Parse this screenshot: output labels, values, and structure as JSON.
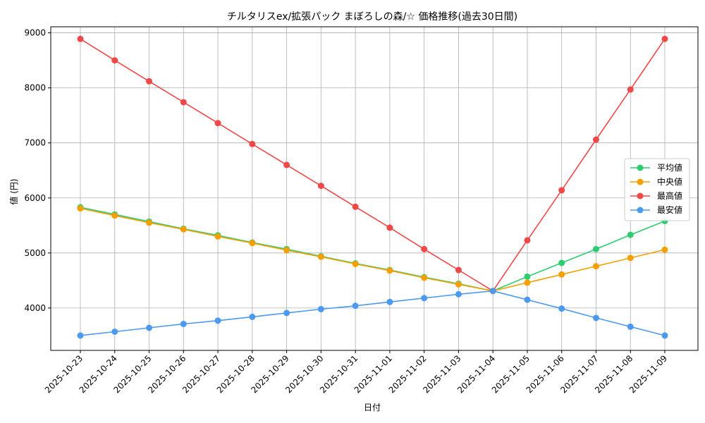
{
  "chart_data": {
    "type": "line",
    "title": "チルタリスex/拡張パック まぼろしの森/☆ 価格推移(過去30日間)",
    "xlabel": "日付",
    "ylabel": "値 (円)",
    "categories": [
      "2025-10-23",
      "2025-10-24",
      "2025-10-25",
      "2025-10-26",
      "2025-10-27",
      "2025-10-28",
      "2025-10-29",
      "2025-10-30",
      "2025-10-31",
      "2025-11-01",
      "2025-11-02",
      "2025-11-03",
      "2025-11-04",
      "2025-11-05",
      "2025-11-06",
      "2025-11-07",
      "2025-11-08",
      "2025-11-09"
    ],
    "ylim": [
      3230,
      9110
    ],
    "yticks": [
      4000,
      5000,
      6000,
      7000,
      8000,
      9000
    ],
    "grid": true,
    "legend_position": "center-right",
    "series": [
      {
        "name": "平均値",
        "color": "#2ecc71",
        "values": [
          5830,
          5700,
          5570,
          5440,
          5320,
          5190,
          5070,
          4940,
          4810,
          4690,
          4560,
          4440,
          4310,
          4570,
          4820,
          5070,
          5330,
          5580
        ]
      },
      {
        "name": "中央値",
        "color": "#f5a000",
        "values": [
          5810,
          5680,
          5550,
          5430,
          5300,
          5180,
          5050,
          4930,
          4800,
          4680,
          4550,
          4430,
          4310,
          4460,
          4610,
          4760,
          4910,
          5060
        ]
      },
      {
        "name": "最高値",
        "color": "#f04848",
        "values": [
          8890,
          8500,
          8120,
          7740,
          7360,
          6980,
          6600,
          6220,
          5840,
          5460,
          5070,
          4690,
          4310,
          5230,
          6140,
          7060,
          7970,
          8890
        ]
      },
      {
        "name": "最安値",
        "color": "#4c9af0",
        "values": [
          3500,
          3570,
          3640,
          3710,
          3770,
          3840,
          3910,
          3980,
          4040,
          4110,
          4180,
          4250,
          4310,
          4150,
          3990,
          3820,
          3660,
          3500
        ]
      }
    ]
  }
}
